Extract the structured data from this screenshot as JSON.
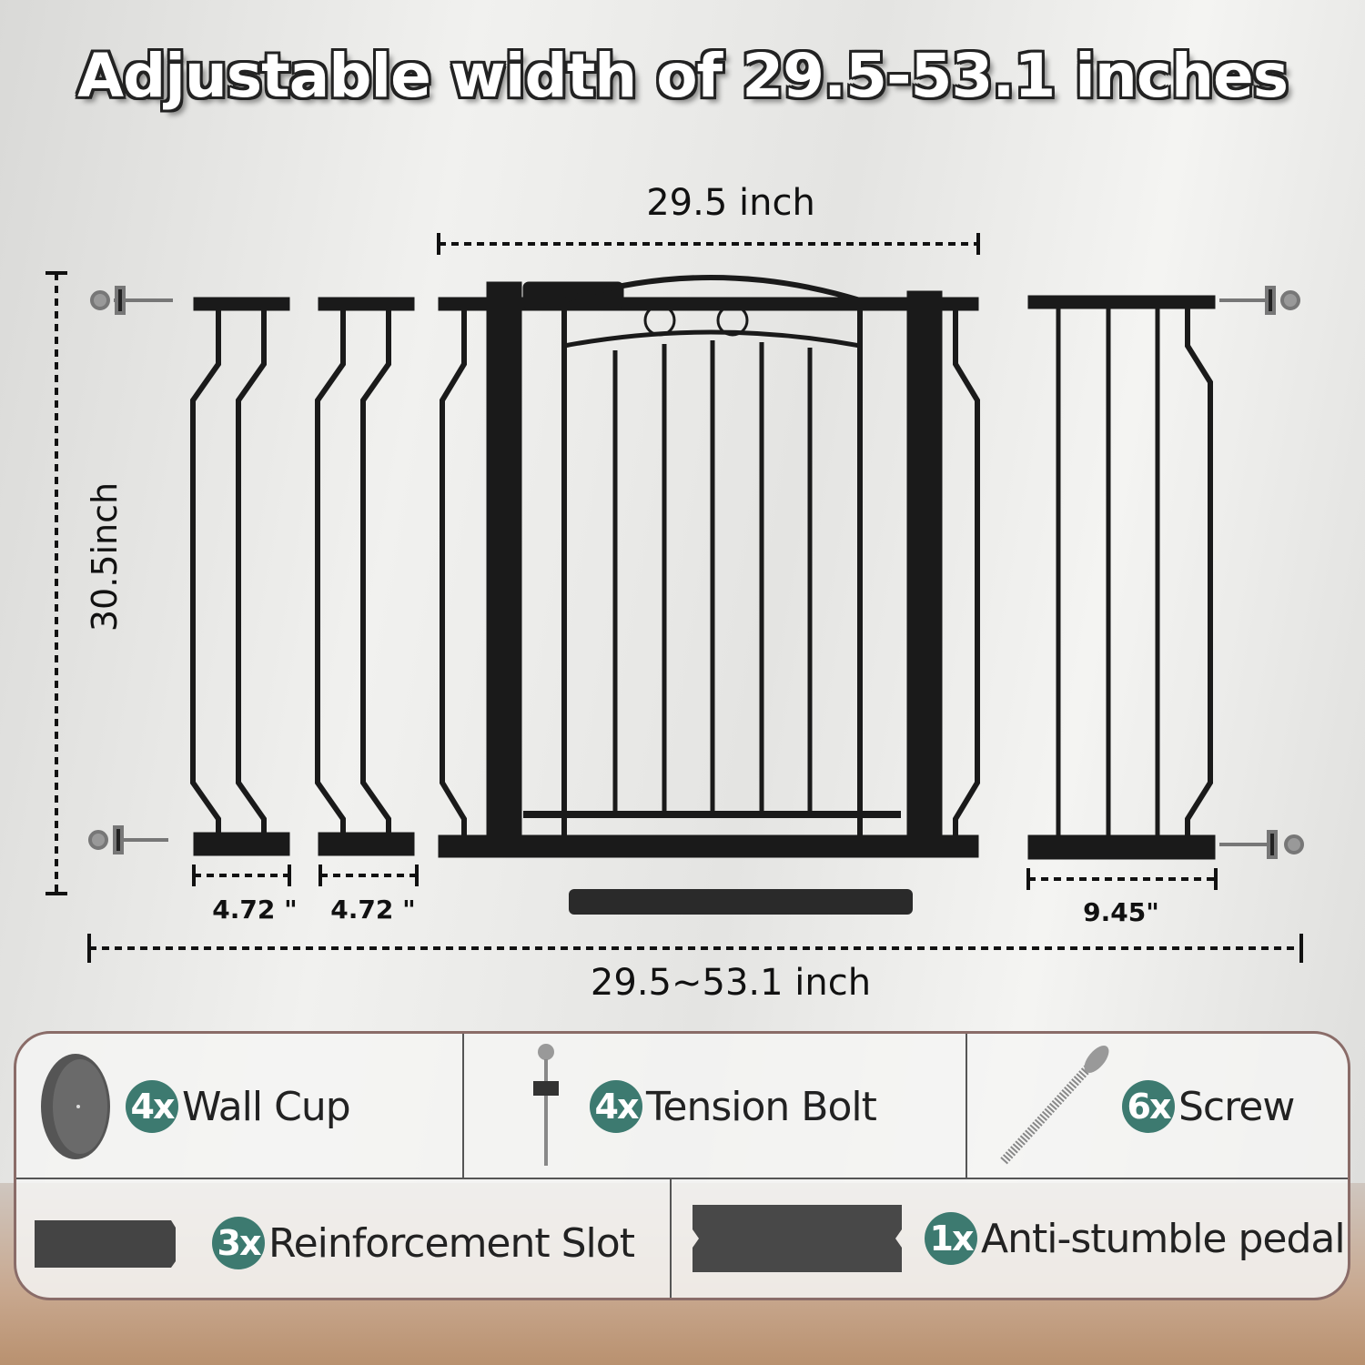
{
  "title": "Adjustable width of 29.5-53.1 inches",
  "dimensions": {
    "gate_width": "29.5 inch",
    "height": "30.5inch",
    "extension_left_1": "4.72 \"",
    "extension_left_2": "4.72 \"",
    "extension_right": "9.45\"",
    "total_range": "29.5~53.1 inch"
  },
  "parts": [
    {
      "count": "4x",
      "label": "Wall Cup",
      "icon": "wall-cup-icon"
    },
    {
      "count": "4x",
      "label": "Tension Bolt",
      "icon": "tension-bolt-icon"
    },
    {
      "count": "6x",
      "label": "Screw",
      "icon": "screw-icon"
    },
    {
      "count": "3x",
      "label": "Reinforcement Slot",
      "icon": "reinforcement-slot-icon"
    },
    {
      "count": "1x",
      "label": "Anti-stumble pedal",
      "icon": "pedal-icon"
    }
  ],
  "colors": {
    "badge": "#3d7a70",
    "gate": "#1a1a1a"
  }
}
